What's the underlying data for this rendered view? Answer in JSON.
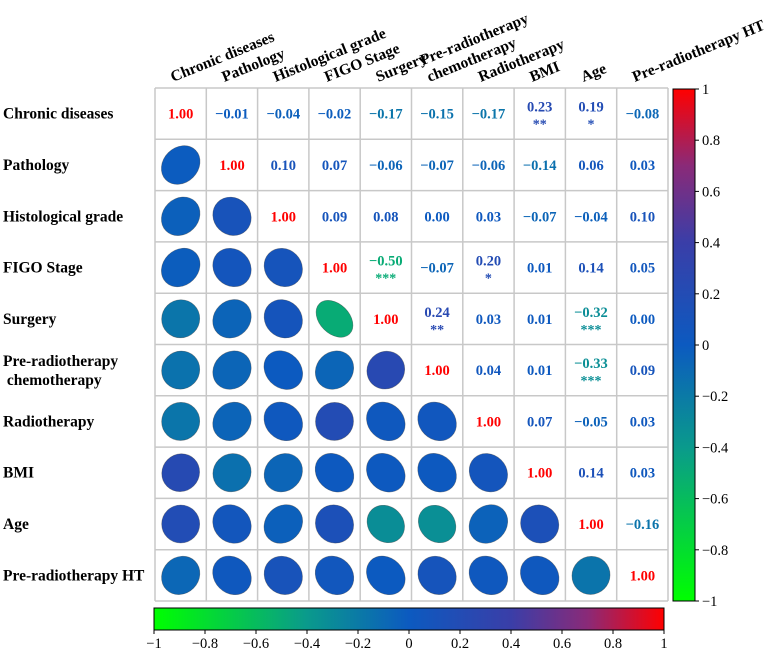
{
  "chart_data": {
    "type": "heatmap",
    "subtype": "correlation-matrix",
    "lower_triangle": "ellipse",
    "upper_triangle": "number",
    "variables": [
      "Chronic diseases",
      "Pathology",
      "Histological grade",
      "FIGO Stage",
      "Surgery",
      "Pre-radiotherapy chemotherapy",
      "Radiotherapy",
      "BMI",
      "Age",
      "Pre-radiotherapy HT"
    ],
    "row_labels": [
      [
        "Chronic diseases"
      ],
      [
        "Pathology"
      ],
      [
        "Histological grade"
      ],
      [
        "FIGO Stage"
      ],
      [
        "Surgery"
      ],
      [
        "Pre-radiotherapy",
        " chemotherapy"
      ],
      [
        "Radiotherapy"
      ],
      [
        "BMI"
      ],
      [
        "Age"
      ],
      [
        "Pre-radiotherapy HT"
      ]
    ],
    "column_labels": [
      [
        "Chronic diseases"
      ],
      [
        "Pathology"
      ],
      [
        "Histological grade"
      ],
      [
        "FIGO Stage"
      ],
      [
        "Surgery"
      ],
      [
        "Pre-radiotherapy",
        "chemotherapy"
      ],
      [
        "Radiotherapy"
      ],
      [
        "BMI"
      ],
      [
        "Age"
      ],
      [
        "Pre-radiotherapy HT"
      ]
    ],
    "matrix": [
      [
        1.0,
        -0.01,
        -0.04,
        -0.02,
        -0.17,
        -0.15,
        -0.17,
        0.23,
        0.19,
        -0.08
      ],
      [
        -0.01,
        1.0,
        0.1,
        0.07,
        -0.06,
        -0.07,
        -0.06,
        -0.14,
        0.06,
        0.03
      ],
      [
        -0.04,
        0.1,
        1.0,
        0.09,
        0.08,
        0.0,
        0.03,
        -0.07,
        -0.04,
        0.1
      ],
      [
        -0.02,
        0.07,
        0.09,
        1.0,
        -0.5,
        -0.07,
        0.2,
        0.01,
        0.14,
        0.05
      ],
      [
        -0.17,
        -0.06,
        0.08,
        -0.5,
        1.0,
        0.24,
        0.03,
        0.01,
        -0.32,
        0.0
      ],
      [
        -0.15,
        -0.07,
        0.0,
        -0.07,
        0.24,
        1.0,
        0.04,
        0.01,
        -0.33,
        0.09
      ],
      [
        -0.17,
        -0.06,
        0.03,
        0.2,
        0.03,
        0.04,
        1.0,
        0.07,
        -0.05,
        0.03
      ],
      [
        0.23,
        -0.14,
        -0.07,
        0.01,
        0.01,
        0.01,
        0.07,
        1.0,
        0.14,
        0.03
      ],
      [
        0.19,
        0.06,
        -0.04,
        0.14,
        -0.32,
        -0.33,
        -0.05,
        0.14,
        1.0,
        -0.16
      ],
      [
        -0.08,
        0.03,
        0.1,
        0.05,
        0.0,
        0.09,
        0.03,
        0.03,
        -0.16,
        1.0
      ]
    ],
    "significance": [
      {
        "row": 0,
        "col": 7,
        "stars": "**"
      },
      {
        "row": 0,
        "col": 8,
        "stars": "*"
      },
      {
        "row": 3,
        "col": 4,
        "stars": "***"
      },
      {
        "row": 3,
        "col": 6,
        "stars": "*"
      },
      {
        "row": 4,
        "col": 5,
        "stars": "**"
      },
      {
        "row": 4,
        "col": 8,
        "stars": "***"
      },
      {
        "row": 5,
        "col": 8,
        "stars": "***"
      }
    ],
    "diagonal_color": "#ff0000",
    "colormap": [
      "#00ff00",
      "#0a9a8c",
      "#0c5ac0",
      "#3a3ea8",
      "#8a2a78",
      "#ff0000"
    ],
    "colormap_stops": [
      -1,
      -0.4,
      0,
      0.4,
      0.7,
      1
    ],
    "colorbar_vertical": {
      "range": [
        -1,
        1
      ],
      "ticks": [
        "1",
        "0.8",
        "0.6",
        "0.4",
        "0.2",
        "0",
        "−0.2",
        "−0.4",
        "−0.6",
        "−0.8",
        "−1"
      ]
    },
    "colorbar_horizontal": {
      "range": [
        -1,
        1
      ],
      "ticks": [
        "−1",
        "−0.8",
        "−0.6",
        "−0.4",
        "−0.2",
        "0",
        "0.2",
        "0.4",
        "0.6",
        "0.8",
        "1"
      ]
    },
    "legend_position": "right and bottom"
  }
}
